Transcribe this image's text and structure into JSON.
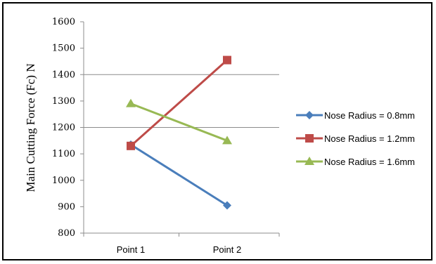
{
  "chart_data": {
    "type": "line",
    "categories": [
      "Point 1",
      "Point 2"
    ],
    "ylabel": "Main Cutting Force (Fc) N",
    "xlabel": "",
    "ylim": [
      800,
      1600
    ],
    "yticks": [
      800,
      900,
      1000,
      1100,
      1200,
      1300,
      1400,
      1500,
      1600
    ],
    "grid": "horizontal major (1200, 1400)",
    "legend_position": "right",
    "series": [
      {
        "name": "Nose Radius = 0.8mm",
        "values": [
          1135,
          905
        ],
        "color": "#4a7ebb",
        "marker": "diamond"
      },
      {
        "name": "Nose Radius = 1.2mm",
        "values": [
          1130,
          1455
        ],
        "color": "#be4b48",
        "marker": "square"
      },
      {
        "name": "Nose Radius = 1.6mm",
        "values": [
          1290,
          1150
        ],
        "color": "#98b954",
        "marker": "triangle"
      }
    ]
  }
}
